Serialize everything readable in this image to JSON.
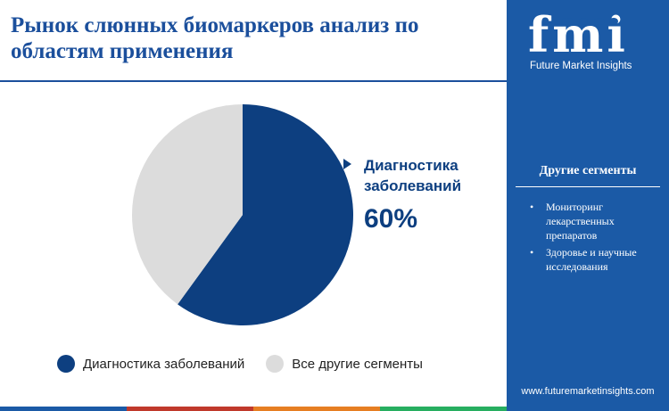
{
  "title": "Рынок слюнных биомаркеров анализ по областям применения",
  "chart_data": {
    "type": "pie",
    "categories": [
      "Диагностика заболеваний",
      "Все другие сегменты"
    ],
    "values": [
      60,
      40
    ],
    "colors": [
      "#0d3f80",
      "#dcdcdc"
    ],
    "start_angle_deg": 0,
    "direction": "clockwise",
    "callout": {
      "label": "Диагностика заболеваний",
      "value": "60%"
    },
    "legend": {
      "placement": "bottom",
      "items": [
        {
          "label": "Диагностика заболеваний",
          "color": "#0d3f80"
        },
        {
          "label": "Все другие сегменты",
          "color": "#dcdcdc"
        }
      ]
    }
  },
  "bottom_stripe_colors": [
    "#1b5aa6",
    "#c0392b",
    "#e67e22",
    "#27ae60"
  ],
  "sidebar": {
    "logo_letters": "fmi",
    "logo_subtitle": "Future Market Insights",
    "panel_title": "Другие сегменты",
    "segments": [
      "Мониторинг лекарственных препаратов",
      "Здоровье и научные исследования"
    ],
    "website": "www.futuremarketinsights.com",
    "background": "#1b5aa6"
  }
}
